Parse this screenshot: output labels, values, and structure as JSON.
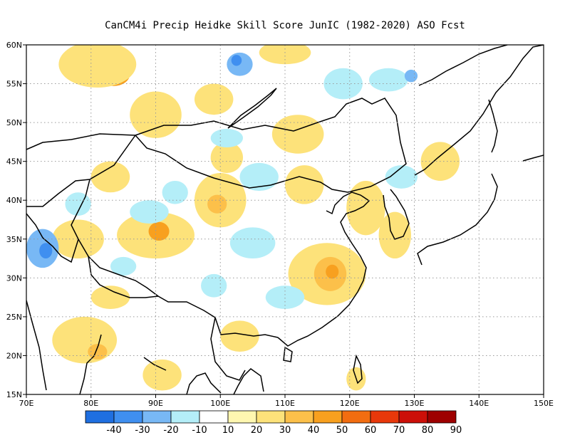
{
  "title": "CanCM4i Precip Heidke Skill Score JunIC (1982-2020) ASO Fcst",
  "map": {
    "lon_range": [
      70,
      150
    ],
    "lat_range": [
      15,
      60
    ],
    "grid": true,
    "lat_ticks": [
      {
        "value": 15,
        "label": "15N"
      },
      {
        "value": 20,
        "label": "20N"
      },
      {
        "value": 25,
        "label": "25N"
      },
      {
        "value": 30,
        "label": "30N"
      },
      {
        "value": 35,
        "label": "35N"
      },
      {
        "value": 40,
        "label": "40N"
      },
      {
        "value": 45,
        "label": "45N"
      },
      {
        "value": 50,
        "label": "50N"
      },
      {
        "value": 55,
        "label": "55N"
      },
      {
        "value": 60,
        "label": "60N"
      }
    ],
    "lon_ticks": [
      {
        "value": 70,
        "label": "70E"
      },
      {
        "value": 80,
        "label": "80E"
      },
      {
        "value": 90,
        "label": "90E"
      },
      {
        "value": 100,
        "label": "100E"
      },
      {
        "value": 110,
        "label": "110E"
      },
      {
        "value": 120,
        "label": "120E"
      },
      {
        "value": 130,
        "label": "130E"
      },
      {
        "value": 140,
        "label": "140E"
      },
      {
        "value": 150,
        "label": "150E"
      }
    ]
  },
  "colorbar": {
    "colors": [
      "#1f6fe0",
      "#3f8ff0",
      "#78b8f5",
      "#b4eef8",
      "#ffffff",
      "#fff7b0",
      "#fde27a",
      "#fcc04a",
      "#f8a01f",
      "#f26d10",
      "#e8380a",
      "#cc0f08",
      "#9e0000"
    ],
    "labels": [
      "-40",
      "-30",
      "-20",
      "-10",
      "10",
      "20",
      "30",
      "40",
      "50",
      "60",
      "70",
      "80",
      "90"
    ]
  },
  "skill_patches": [
    {
      "lon": 83.5,
      "lat": 56.2,
      "rx": 2.5,
      "ry": 1.5,
      "level": 40
    },
    {
      "lon": 81,
      "lat": 57.5,
      "rx": 6,
      "ry": 3,
      "level": 20
    },
    {
      "lon": 90,
      "lat": 51,
      "rx": 4,
      "ry": 3,
      "level": 20
    },
    {
      "lon": 101,
      "lat": 45.5,
      "rx": 2.5,
      "ry": 2,
      "level": 20
    },
    {
      "lon": 83,
      "lat": 43,
      "rx": 3,
      "ry": 2,
      "level": 20
    },
    {
      "lon": 100,
      "lat": 40,
      "rx": 4,
      "ry": 3.5,
      "level": 20
    },
    {
      "lon": 99.5,
      "lat": 39.5,
      "rx": 1.5,
      "ry": 1.2,
      "level": 30
    },
    {
      "lon": 90,
      "lat": 35.5,
      "rx": 6,
      "ry": 3,
      "level": 20
    },
    {
      "lon": 90.5,
      "lat": 36,
      "rx": 1.6,
      "ry": 1.2,
      "level": 40
    },
    {
      "lon": 78,
      "lat": 35,
      "rx": 4,
      "ry": 2.5,
      "level": 20
    },
    {
      "lon": 116.5,
      "lat": 30.5,
      "rx": 6,
      "ry": 4,
      "level": 20
    },
    {
      "lon": 117,
      "lat": 30.5,
      "rx": 2.5,
      "ry": 2.2,
      "level": 30
    },
    {
      "lon": 117.3,
      "lat": 30.8,
      "rx": 1,
      "ry": 0.9,
      "level": 40
    },
    {
      "lon": 113,
      "lat": 42,
      "rx": 3,
      "ry": 2.5,
      "level": 20
    },
    {
      "lon": 112,
      "lat": 48.5,
      "rx": 4,
      "ry": 2.5,
      "level": 20
    },
    {
      "lon": 122.5,
      "lat": 39,
      "rx": 3,
      "ry": 3.5,
      "level": 20
    },
    {
      "lon": 134,
      "lat": 45,
      "rx": 3,
      "ry": 2.5,
      "level": 20
    },
    {
      "lon": 83,
      "lat": 27.5,
      "rx": 3,
      "ry": 1.5,
      "level": 20
    },
    {
      "lon": 79,
      "lat": 22,
      "rx": 5,
      "ry": 3,
      "level": 20
    },
    {
      "lon": 81,
      "lat": 20.5,
      "rx": 1.5,
      "ry": 1,
      "level": 30
    },
    {
      "lon": 91,
      "lat": 17.5,
      "rx": 3,
      "ry": 2,
      "level": 20
    },
    {
      "lon": 103,
      "lat": 22.5,
      "rx": 3,
      "ry": 2,
      "level": 20
    },
    {
      "lon": 127,
      "lat": 35.5,
      "rx": 2.5,
      "ry": 3,
      "level": 20
    },
    {
      "lon": 110,
      "lat": 59,
      "rx": 4,
      "ry": 1.5,
      "level": 20
    },
    {
      "lon": 121,
      "lat": 17,
      "rx": 1.5,
      "ry": 1.5,
      "level": 20
    },
    {
      "lon": 99,
      "lat": 53,
      "rx": 3,
      "ry": 2,
      "level": 20
    },
    {
      "lon": 72.5,
      "lat": 33.8,
      "rx": 2.5,
      "ry": 2.5,
      "level": -20
    },
    {
      "lon": 73,
      "lat": 33.5,
      "rx": 1,
      "ry": 1,
      "level": -30
    },
    {
      "lon": 103,
      "lat": 57.5,
      "rx": 2,
      "ry": 1.5,
      "level": -20
    },
    {
      "lon": 102.5,
      "lat": 58,
      "rx": 0.8,
      "ry": 0.7,
      "level": -30
    },
    {
      "lon": 119,
      "lat": 55,
      "rx": 3,
      "ry": 2,
      "level": -10
    },
    {
      "lon": 126,
      "lat": 55.5,
      "rx": 3,
      "ry": 1.5,
      "level": -10
    },
    {
      "lon": 129.5,
      "lat": 56,
      "rx": 1,
      "ry": 0.8,
      "level": -20
    },
    {
      "lon": 106,
      "lat": 43,
      "rx": 3,
      "ry": 1.8,
      "level": -10
    },
    {
      "lon": 89,
      "lat": 38.5,
      "rx": 3,
      "ry": 1.5,
      "level": -10
    },
    {
      "lon": 105,
      "lat": 34.5,
      "rx": 3.5,
      "ry": 2,
      "level": -10
    },
    {
      "lon": 78,
      "lat": 39.5,
      "rx": 2,
      "ry": 1.5,
      "level": -10
    },
    {
      "lon": 99,
      "lat": 29,
      "rx": 2,
      "ry": 1.5,
      "level": -10
    },
    {
      "lon": 110,
      "lat": 27.5,
      "rx": 3,
      "ry": 1.5,
      "level": -10
    },
    {
      "lon": 128,
      "lat": 43,
      "rx": 2.5,
      "ry": 1.5,
      "level": -10
    },
    {
      "lon": 85,
      "lat": 31.5,
      "rx": 2,
      "ry": 1.2,
      "level": -10
    },
    {
      "lon": 93,
      "lat": 41,
      "rx": 2,
      "ry": 1.5,
      "level": -10
    },
    {
      "lon": 101,
      "lat": 48,
      "rx": 2.5,
      "ry": 1.2,
      "level": -10
    }
  ]
}
